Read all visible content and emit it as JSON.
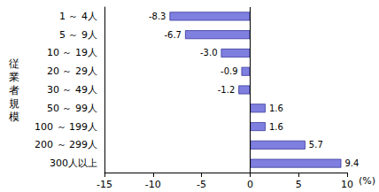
{
  "chart_data": {
    "type": "bar",
    "orientation": "horizontal",
    "y_label": "従業者規模",
    "x_label": "(%)",
    "categories": [
      "1 ～ 4人",
      "5 ～ 9人",
      "10 ～ 19人",
      "20 ～ 29人",
      "30 ～ 49人",
      "50 ～ 99人",
      "100 ～ 199人",
      "200 ～ 299人",
      "300人以上"
    ],
    "values": [
      -8.3,
      -6.7,
      -3.0,
      -0.9,
      -1.2,
      1.6,
      1.6,
      5.7,
      9.4
    ],
    "value_labels": [
      "-8.3",
      "-6.7",
      "-3.0",
      "-0.9",
      "-1.2",
      "1.6",
      "1.6",
      "5.7",
      "9.4"
    ],
    "color": "#7f7fe0",
    "xlim": [
      -15,
      10
    ],
    "xticks": [
      -15,
      -10,
      -5,
      0,
      5,
      10
    ],
    "grid": false,
    "data_labels": true
  }
}
